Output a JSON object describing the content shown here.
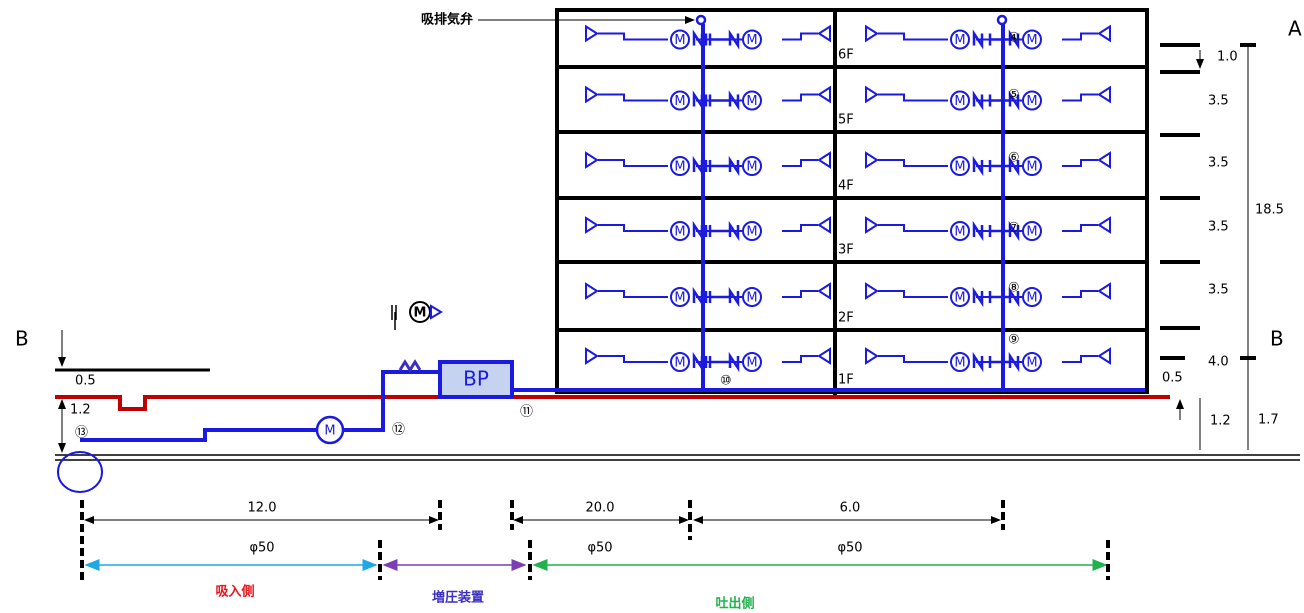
{
  "valve_label": "吸排気弁",
  "section_labels": [
    "A",
    "B",
    "B"
  ],
  "floors": [
    "6F",
    "5F",
    "4F",
    "3F",
    "2F",
    "1F"
  ],
  "riser_nodes": [
    "④",
    "⑤",
    "⑥",
    "⑦",
    "⑧",
    "⑨"
  ],
  "nodes": [
    "⑩",
    "⑪",
    "⑫",
    "⑬"
  ],
  "meter_symbol": "M",
  "pump": "BP",
  "right_dims": [
    "1.0",
    "3.5",
    "3.5",
    "3.5",
    "3.5",
    "4.0"
  ],
  "total_height": "18.5",
  "right_ground": [
    "0.5",
    "1.2",
    "1.7"
  ],
  "left_dims": [
    "0.5",
    "1.2"
  ],
  "spans": [
    {
      "length": "12.0",
      "diameter": "φ50"
    },
    {
      "length": "20.0",
      "diameter": "φ50"
    },
    {
      "length": "6.0",
      "diameter": "φ50"
    }
  ],
  "zones": [
    {
      "label": "吸入側",
      "color": "#e8141b"
    },
    {
      "label": "増圧装置",
      "color": "#3b2fc0"
    },
    {
      "label": "吐出側",
      "color": "#22b24c"
    }
  ]
}
